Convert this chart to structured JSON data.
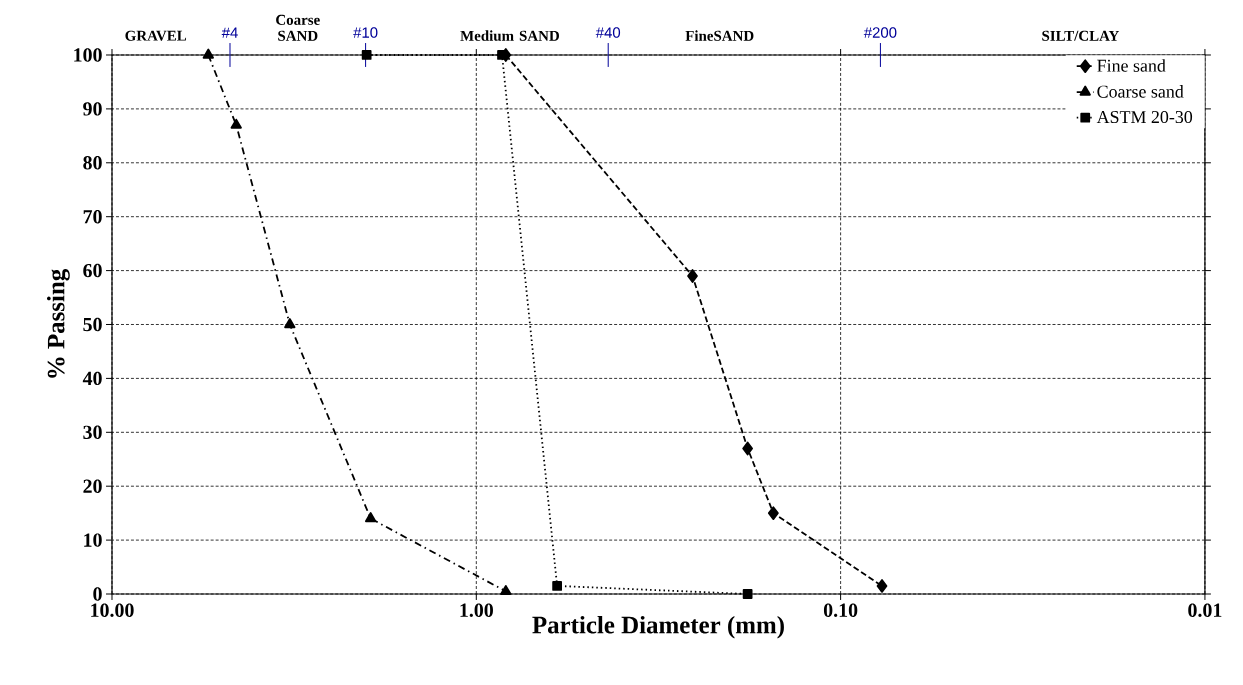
{
  "chart_data": {
    "type": "line",
    "xlabel": "Particle Diameter (mm)",
    "ylabel": "% Passing",
    "log": "x",
    "grid": true,
    "legend": "top right",
    "xlim": [
      10,
      0.01
    ],
    "ylim": [
      0,
      100
    ],
    "xticks": [
      {
        "value": 10,
        "label": "10.00"
      },
      {
        "value": 1,
        "label": "1.00"
      },
      {
        "value": 0.1,
        "label": "0.10"
      },
      {
        "value": 0.01,
        "label": "0.01"
      }
    ],
    "yticks": [
      0,
      10,
      20,
      30,
      40,
      50,
      60,
      70,
      80,
      90,
      100
    ],
    "annotations": [
      "GRAVEL",
      "#4",
      "Coarse SAND",
      "#10",
      "Medium SAND",
      "#40",
      "FineSAND",
      "#200",
      "SILT/CLAY"
    ],
    "series": [
      {
        "name": "Fine sand",
        "color": "#000000",
        "marker": "diamond",
        "line_style": "dashed",
        "x": [
          0.83,
          0.255,
          0.18,
          0.153,
          0.077
        ],
        "values": [
          100,
          59,
          27,
          15,
          1.5
        ]
      },
      {
        "name": "Coarse sand",
        "color": "#000000",
        "marker": "triangle",
        "line_style": "dashdot",
        "x": [
          5.44,
          4.56,
          3.25,
          1.95,
          0.83
        ],
        "values": [
          100,
          87,
          50,
          14,
          0.5
        ]
      },
      {
        "name": "ASTM 20-30",
        "color": "#000000",
        "marker": "square",
        "line_style": "dotted",
        "x": [
          2.0,
          0.85,
          0.6,
          0.18
        ],
        "values": [
          100,
          100,
          1.5,
          0
        ]
      }
    ]
  }
}
